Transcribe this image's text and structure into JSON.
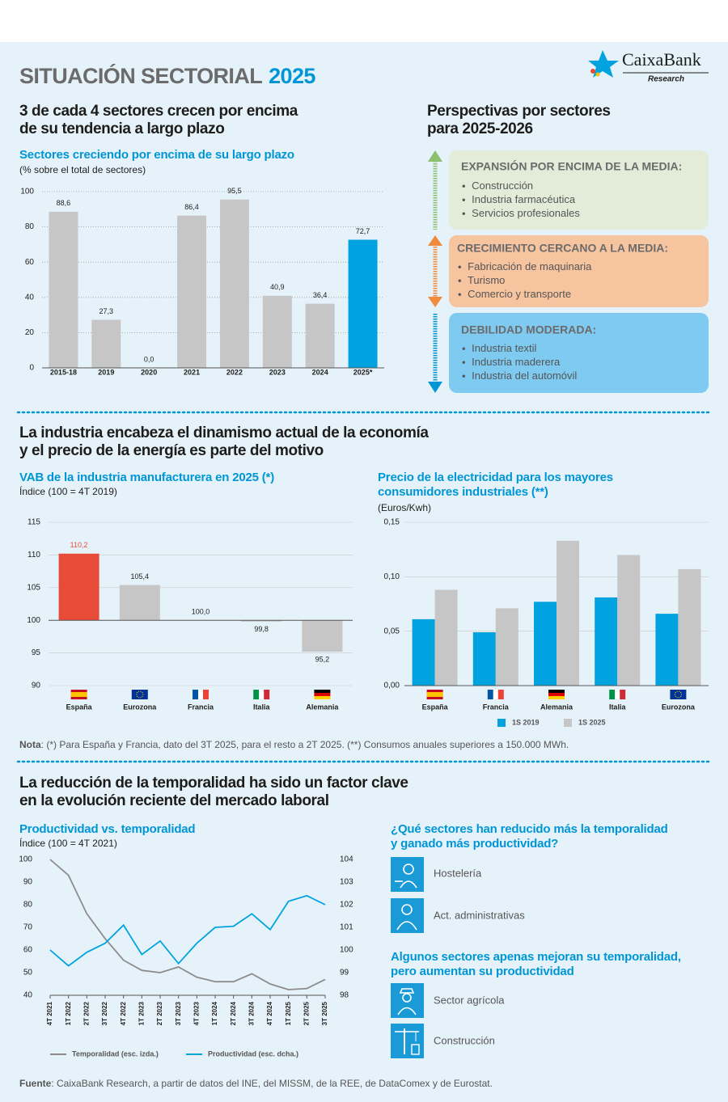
{
  "header": {
    "title": "SITUACIÓN SECTORIAL",
    "title_year": "2025",
    "logo": "CaixaBank",
    "logo_sub": "Research"
  },
  "section1": {
    "heading": [
      "3 de cada 4 sectores crecen por encima",
      "de su tendencia a largo plazo"
    ]
  },
  "perspectives": {
    "title": [
      "Perspectivas por sectores",
      "para 2025-2026"
    ],
    "groups": [
      {
        "heading": "EXPANSIÓN POR ENCIMA DE LA MEDIA:",
        "items": [
          "Construcción",
          "Industria farmacéutica",
          "Servicios profesionales"
        ]
      },
      {
        "heading": "CRECIMIENTO CERCANO A LA MEDIA:",
        "items": [
          "Fabricación de maquinaria",
          "Turismo",
          "Comercio y transporte"
        ]
      },
      {
        "heading": "DEBILIDAD MODERADA:",
        "items": [
          "Industria textil",
          "Industria maderera",
          "Industria del automóvil"
        ]
      }
    ]
  },
  "section2": {
    "heading": [
      "La industria encabeza el dinamismo actual de la economía",
      "y el precio de la energía es parte del motivo"
    ]
  },
  "note": {
    "label": "Nota",
    "text": ": (*) Para España y Francia, dato del 3T 2025, para el resto a 2T 2025. (**) Consumos anuales superiores a 150.000 MWh."
  },
  "section3": {
    "heading": [
      "La reducción de la temporalidad ha sido un factor clave",
      "en la evolución reciente del mercado laboral"
    ]
  },
  "sectors": {
    "groups": [
      {
        "question": [
          "¿Qué sectores han reducido más la temporalidad",
          "y ganado más productividad?"
        ],
        "items": [
          "Hostelería",
          "Act. administrativas"
        ]
      },
      {
        "question": [
          "Algunos sectores apenas mejoran su temporalidad,",
          "pero aumentan su productividad"
        ],
        "items": [
          "Sector agrícola",
          "Construcción"
        ]
      }
    ]
  },
  "source": {
    "label": "Fuente",
    "text": ": CaixaBank Research, a partir de datos del INE, del MISSM, de la REE, de DataComex y de Eurostat."
  },
  "chart_data": [
    {
      "type": "bar",
      "title": "Sectores creciendo por encima de su largo plazo",
      "subtitle": "(% sobre el total de sectores)",
      "categories": [
        "2015-18",
        "2019",
        "2020",
        "2021",
        "2022",
        "2023",
        "2024",
        "2025*"
      ],
      "values": [
        88.6,
        27.3,
        0.0,
        86.4,
        95.5,
        40.9,
        36.4,
        72.7
      ],
      "value_labels": [
        "88,6",
        "27,3",
        "0,0",
        "86,4",
        "95,5",
        "40,9",
        "36,4",
        "72,7"
      ],
      "colors": [
        "#c6c6c6",
        "#c6c6c6",
        "#c6c6c6",
        "#c6c6c6",
        "#c6c6c6",
        "#c6c6c6",
        "#c6c6c6",
        "#00a3e0"
      ],
      "ylim": [
        0,
        100
      ],
      "yticks": [
        0,
        20,
        40,
        60,
        80,
        100
      ],
      "grid": true
    },
    {
      "type": "bar",
      "title": "VAB de la industria manufacturera en 2025 (*)",
      "subtitle": "Índice (100 = 4T 2019)",
      "categories": [
        "España",
        "Eurozona",
        "Francia",
        "Italia",
        "Alemania"
      ],
      "values": [
        110.2,
        105.4,
        100.0,
        99.8,
        95.2
      ],
      "value_labels": [
        "110,2",
        "105,4",
        "100,0",
        "99,8",
        "95,2"
      ],
      "colors": [
        "#e84b37",
        "#c6c6c6",
        "#c6c6c6",
        "#c6c6c6",
        "#c6c6c6"
      ],
      "baseline": 100,
      "ylim": [
        90,
        115
      ],
      "yticks": [
        90,
        95,
        100,
        105,
        110,
        115
      ],
      "grid": true
    },
    {
      "type": "bar",
      "title": [
        "Precio de la electricidad para los mayores",
        "consumidores industriales (**)"
      ],
      "subtitle": "(Euros/Kwh)",
      "categories": [
        "España",
        "Francia",
        "Alemania",
        "Italia",
        "Eurozona"
      ],
      "series": [
        {
          "name": "1S 2019",
          "color": "#00a3e0",
          "values": [
            0.061,
            0.049,
            0.077,
            0.081,
            0.066
          ]
        },
        {
          "name": "1S 2025",
          "color": "#c6c6c6",
          "values": [
            0.088,
            0.071,
            0.133,
            0.12,
            0.107
          ]
        }
      ],
      "ylim": [
        0,
        0.15
      ],
      "yticks": [
        {
          "value": 0,
          "label": "0,00"
        },
        {
          "value": 0.05,
          "label": "0,05"
        },
        {
          "value": 0.1,
          "label": "0,10"
        },
        {
          "value": 0.15,
          "label": "0,15"
        }
      ],
      "grid": true,
      "legend": "bottom"
    },
    {
      "type": "line",
      "title": "Productividad vs. temporalidad",
      "subtitle": "Índice (100 = 4T 2021)",
      "categories": [
        "4T 2021",
        "1T 2022",
        "2T 2022",
        "3T 2022",
        "4T 2022",
        "1T 2023",
        "2T 2023",
        "3T 2023",
        "4T 2023",
        "1T 2024",
        "2T 2024",
        "3T 2024",
        "4T 2024",
        "1T 2025",
        "2T 2025",
        "3T 2025"
      ],
      "series": [
        {
          "name": "Temporalidad (esc. izda.)",
          "color": "#8c8c8c",
          "values": [
            100,
            93,
            76,
            65,
            55.5,
            51,
            50,
            52.5,
            48,
            46,
            46,
            49.5,
            45,
            42.5,
            43,
            47
          ]
        },
        {
          "name": "Productividad (esc. dcha.)",
          "color": "#00a3e0",
          "axis": "y2",
          "values": [
            100,
            99.3,
            99.9,
            100.3,
            101.1,
            99.8,
            100.4,
            99.4,
            100.3,
            101,
            101.05,
            101.6,
            100.9,
            102.15,
            102.4,
            102
          ]
        }
      ],
      "ylim": [
        40,
        100
      ],
      "yticks": [
        40,
        50,
        60,
        70,
        80,
        90,
        100
      ],
      "y2lim": [
        98,
        104
      ],
      "y2ticks": [
        98,
        99,
        100,
        101,
        102,
        103,
        104
      ],
      "grid": false,
      "legend": "bottom"
    }
  ]
}
